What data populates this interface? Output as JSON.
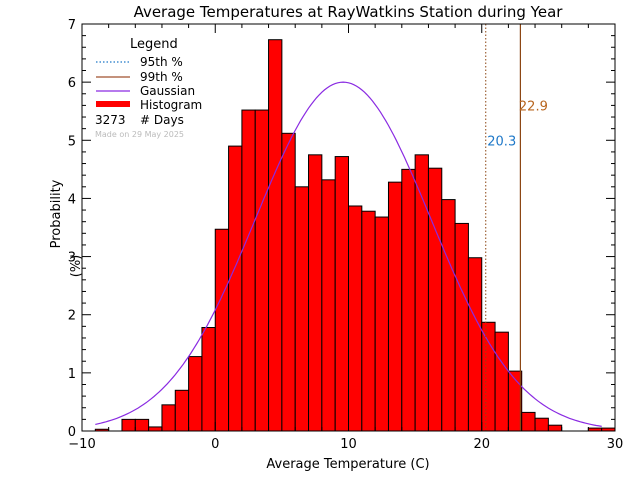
{
  "chart_data": {
    "type": "bar",
    "title": "Average Temperatures at RayWatkins Station during Year",
    "xlabel": "Average Temperature (C)",
    "ylabel_line1": "Probability",
    "ylabel_line2": "(%)",
    "xlim": [
      -10,
      30
    ],
    "ylim": [
      0,
      7
    ],
    "x_ticks": [
      -10,
      0,
      10,
      20,
      30
    ],
    "y_ticks": [
      0,
      1,
      2,
      3,
      4,
      5,
      6,
      7
    ],
    "bin_width": 1,
    "bins": [
      {
        "x0": -9,
        "value": 0.03
      },
      {
        "x0": -8,
        "value": 0.0
      },
      {
        "x0": -7,
        "value": 0.2
      },
      {
        "x0": -6,
        "value": 0.2
      },
      {
        "x0": -5,
        "value": 0.07
      },
      {
        "x0": -4,
        "value": 0.45
      },
      {
        "x0": -3,
        "value": 0.7
      },
      {
        "x0": -2,
        "value": 1.28
      },
      {
        "x0": -1,
        "value": 1.78
      },
      {
        "x0": 0,
        "value": 3.47
      },
      {
        "x0": 1,
        "value": 4.9
      },
      {
        "x0": 2,
        "value": 5.52
      },
      {
        "x0": 3,
        "value": 5.52
      },
      {
        "x0": 4,
        "value": 6.73
      },
      {
        "x0": 5,
        "value": 5.12
      },
      {
        "x0": 6,
        "value": 4.2
      },
      {
        "x0": 7,
        "value": 4.75
      },
      {
        "x0": 8,
        "value": 4.32
      },
      {
        "x0": 9,
        "value": 4.72
      },
      {
        "x0": 10,
        "value": 3.87
      },
      {
        "x0": 11,
        "value": 3.78
      },
      {
        "x0": 12,
        "value": 3.68
      },
      {
        "x0": 13,
        "value": 4.28
      },
      {
        "x0": 14,
        "value": 4.5
      },
      {
        "x0": 15,
        "value": 4.75
      },
      {
        "x0": 16,
        "value": 4.52
      },
      {
        "x0": 17,
        "value": 3.98
      },
      {
        "x0": 18,
        "value": 3.57
      },
      {
        "x0": 19,
        "value": 2.98
      },
      {
        "x0": 20,
        "value": 1.87
      },
      {
        "x0": 21,
        "value": 1.7
      },
      {
        "x0": 22,
        "value": 1.03
      },
      {
        "x0": 23,
        "value": 0.32
      },
      {
        "x0": 24,
        "value": 0.22
      },
      {
        "x0": 25,
        "value": 0.1
      },
      {
        "x0": 26,
        "value": 0.0
      },
      {
        "x0": 27,
        "value": 0.0
      },
      {
        "x0": 28,
        "value": 0.05
      },
      {
        "x0": 29,
        "value": 0.05
      }
    ],
    "gaussian": {
      "mean": 9.6,
      "sigma": 6.6,
      "peak": 6.0,
      "x_range": [
        -9,
        29
      ]
    },
    "percentiles": {
      "p95": {
        "value": 20.3,
        "label": "20.3",
        "color": "#8b4513"
      },
      "p99": {
        "value": 22.9,
        "label": "22.9",
        "color": "#8b4513"
      }
    },
    "p95_label_color": "#1e78c8",
    "p99_label_color": "#b8651e",
    "legend": {
      "title": "Legend",
      "entries": [
        {
          "label": "95th %",
          "style": "dotted",
          "color": "#1e78c8"
        },
        {
          "label": "99th %",
          "style": "solid",
          "color": "#a0522d"
        },
        {
          "label": "Gaussian",
          "style": "solid",
          "color": "#8a2be2"
        },
        {
          "label": "Histogram",
          "style": "thick",
          "color": "#ff0000"
        }
      ],
      "days_count": "3273",
      "days_label": "# Days",
      "made_on": "Made on 29 May 2025"
    },
    "colors": {
      "histogram_fill": "#ff0000",
      "histogram_edge": "#000000",
      "gaussian": "#8a2be2",
      "axis": "#000000",
      "made_on": "#bbbbbb"
    }
  }
}
